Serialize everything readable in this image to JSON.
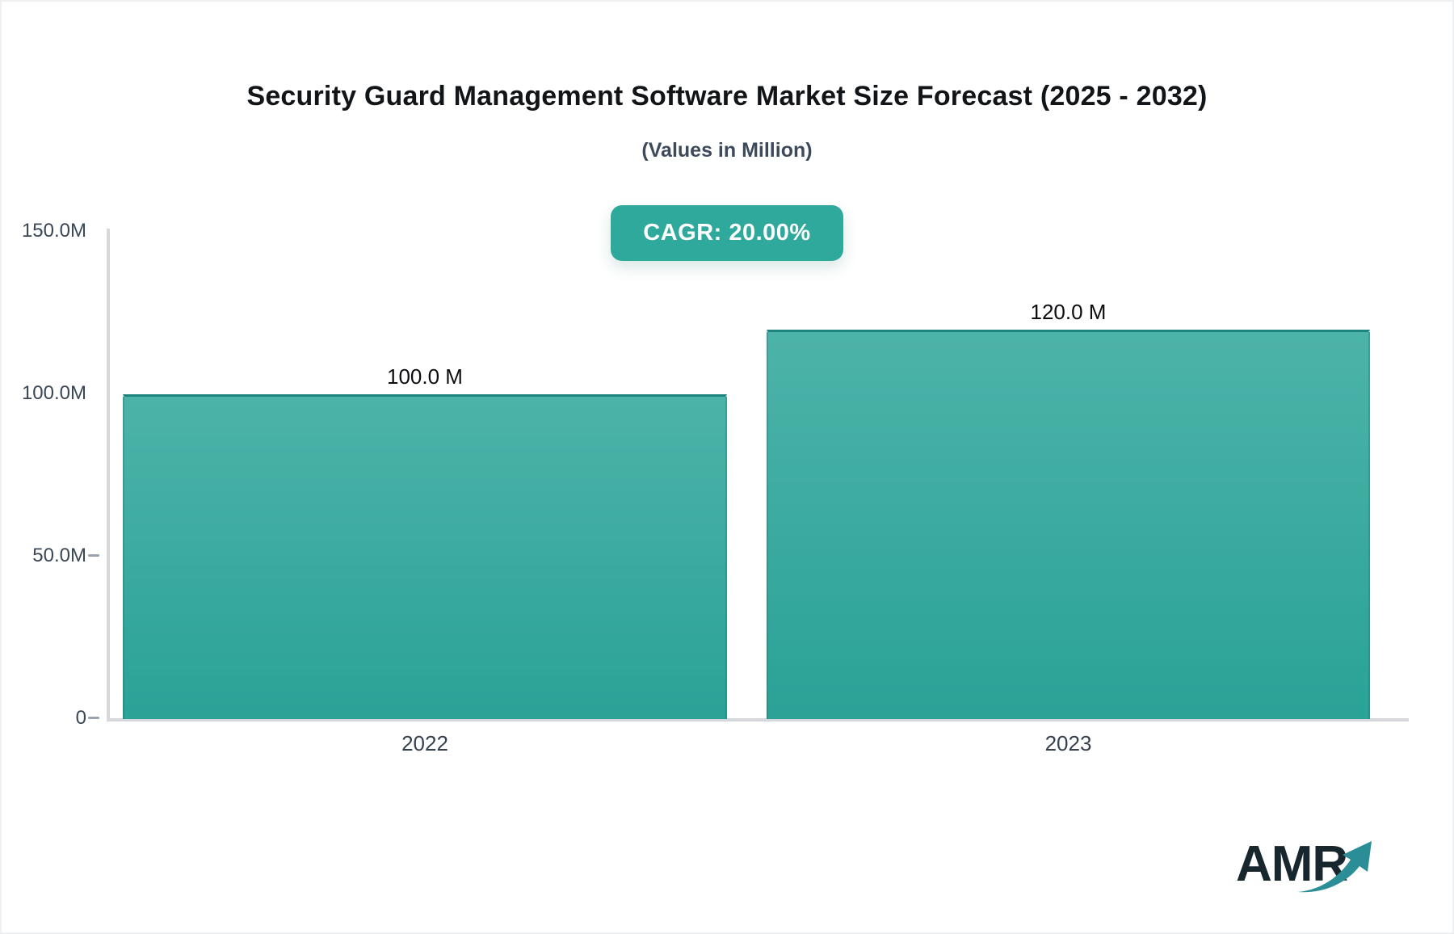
{
  "chart_data": {
    "type": "bar",
    "title": "Security Guard Management Software Market Size Forecast (2025 - 2032)",
    "subtitle": "(Values in Million)",
    "cagr_badge": "CAGR: 20.00%",
    "categories": [
      "2022",
      "2023"
    ],
    "values": [
      100.0,
      120.0
    ],
    "value_labels": [
      "100.0 M",
      "120.0 M"
    ],
    "unit": "Million",
    "ylim": [
      0,
      150
    ],
    "yticks": [
      {
        "label": "0",
        "value": 0,
        "dash": true
      },
      {
        "label": "50.0M",
        "value": 50,
        "dash": true
      },
      {
        "label": "100.0M",
        "value": 100,
        "dash": false
      },
      {
        "label": "150.0M",
        "value": 150,
        "dash": false
      }
    ],
    "xlabel": "",
    "ylabel": "",
    "grid": false,
    "legend": false
  },
  "logo": {
    "text": "AMR"
  },
  "colors": {
    "bar_gradient_top": "#4db3a9",
    "bar_gradient_bottom": "#2aa296",
    "bar_border": "#1d857d",
    "badge_bg": "#2ea99b",
    "axis_line": "#d5d7dc",
    "tick_text": "#3a4757",
    "value_text": "#0b0d10",
    "logo_text": "#18262e",
    "logo_arrow": "#2b8e96"
  }
}
